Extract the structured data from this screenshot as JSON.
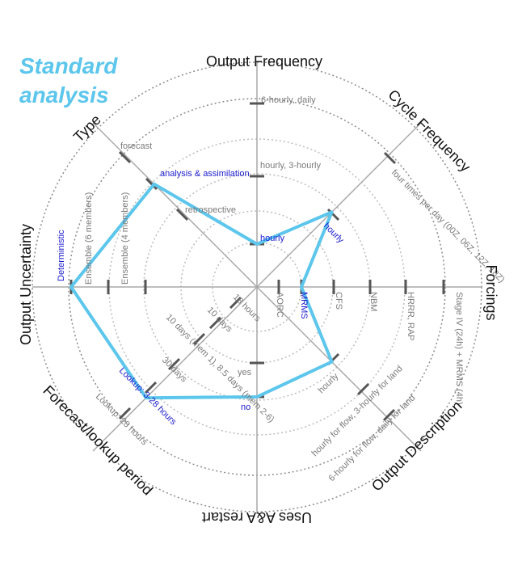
{
  "title_line1": "Standard",
  "title_line2": "analysis",
  "colors": {
    "highlight": "#5cc6ec",
    "selected_text": "#1a1acc",
    "option_text": "#7a7a7a"
  },
  "axes": [
    {
      "name": "Output Frequency",
      "options": [
        "hourly",
        "hourly, 3-hourly",
        "6-hourly, daily"
      ],
      "selected": 0
    },
    {
      "name": "Cycle Frequency",
      "options": [
        "hourly",
        "four times per day (00Z, 06Z, 12Z, 18Z)"
      ],
      "selected": 0
    },
    {
      "name": "Forcings",
      "options": [
        "AORC",
        "MRMS",
        "CFS",
        "NBM",
        "HRRR, RAP",
        "Stage IV (24h) + MRMS (4h)"
      ],
      "selected": 1
    },
    {
      "name": "Output Description",
      "options": [
        "hourly",
        "hourly for flow, 3-hourly for land",
        "6-hourly for flow, daily for land"
      ],
      "selected": 0
    },
    {
      "name": "Uses A&A restart",
      "options": [
        "yes",
        "no"
      ],
      "selected": 1
    },
    {
      "name": "Forecast/lookup period",
      "options": [
        "18 hours",
        "10 days",
        "10 days (mem 1), 8.5 days (mem 2-6)",
        "30 days",
        "Lookup: 3-28 hours",
        "Lookup: 28 hours"
      ],
      "selected": 4
    },
    {
      "name": "Output Uncertainty",
      "options": [
        "Ensemble (4 members)",
        "Ensemble (6 members)",
        "Deterministic"
      ],
      "selected": 2
    },
    {
      "name": "Type",
      "options": [
        "retrospective",
        "analysis & assimilation",
        "forecast"
      ],
      "selected": 1
    }
  ]
}
